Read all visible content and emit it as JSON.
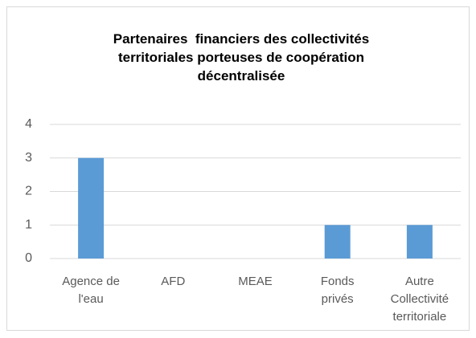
{
  "chart_data": {
    "type": "bar",
    "title": "Partenaires  financiers des collectivités territoriales porteuses de coopération décentralisée",
    "categories": [
      "Agence de l'eau",
      "AFD",
      "MEAE",
      "Fonds privés",
      "Autre Collectivité territoriale"
    ],
    "values": [
      3,
      0,
      0,
      1,
      1
    ],
    "color": "#5b9bd5",
    "ylim": [
      0,
      4
    ],
    "yticks": [
      0,
      1,
      2,
      3,
      4
    ],
    "grid": true
  }
}
